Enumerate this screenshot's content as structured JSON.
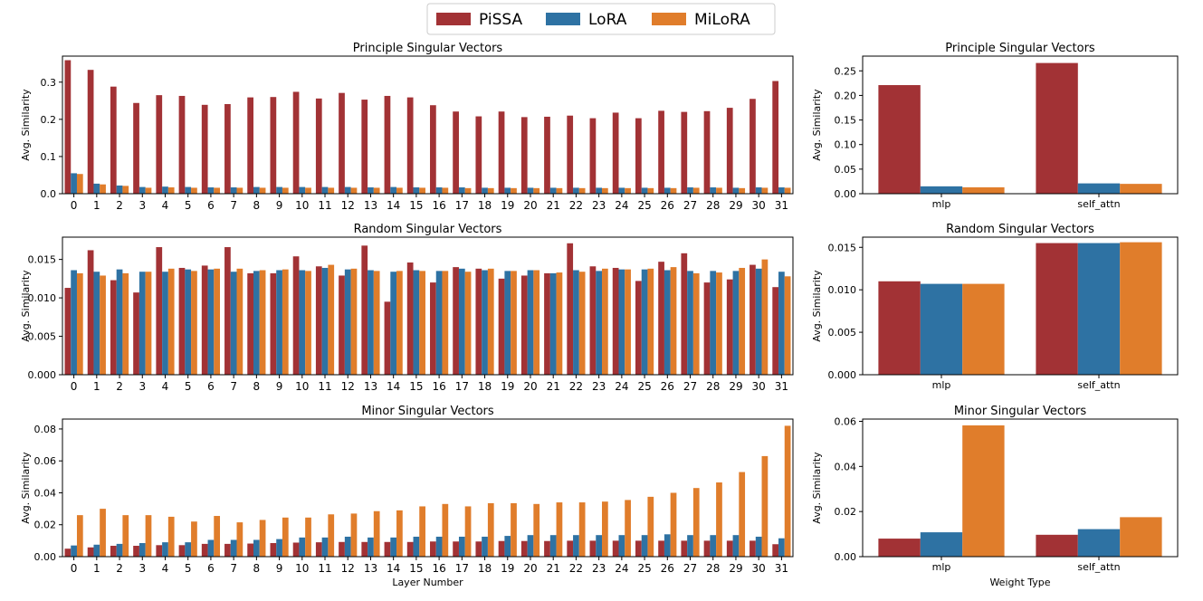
{
  "legend": [
    {
      "name": "PiSSA",
      "color": "#a23235"
    },
    {
      "name": "LoRA",
      "color": "#2e72a3"
    },
    {
      "name": "MiLoRA",
      "color": "#e07d2b"
    }
  ],
  "chart_data": [
    {
      "id": "layer-principle",
      "type": "bar",
      "title": "Principle Singular Vectors",
      "xlabel": "",
      "ylabel": "Avg. Similarity",
      "ylim": [
        0,
        0.37
      ],
      "yticks": [
        "0.0",
        "0.1",
        "0.2",
        "0.3"
      ],
      "ytick_values": [
        0,
        0.1,
        0.2,
        0.3
      ],
      "categories": [
        "0",
        "1",
        "2",
        "3",
        "4",
        "5",
        "6",
        "7",
        "8",
        "9",
        "10",
        "11",
        "12",
        "13",
        "14",
        "15",
        "16",
        "17",
        "18",
        "19",
        "20",
        "21",
        "22",
        "23",
        "24",
        "25",
        "26",
        "27",
        "28",
        "29",
        "30",
        "31"
      ],
      "series": [
        {
          "name": "PiSSA",
          "values": [
            0.359,
            0.333,
            0.288,
            0.244,
            0.265,
            0.263,
            0.239,
            0.241,
            0.259,
            0.26,
            0.274,
            0.256,
            0.271,
            0.253,
            0.263,
            0.259,
            0.238,
            0.221,
            0.208,
            0.221,
            0.206,
            0.207,
            0.21,
            0.203,
            0.218,
            0.203,
            0.223,
            0.22,
            0.222,
            0.231,
            0.255,
            0.303
          ]
        },
        {
          "name": "LoRA",
          "values": [
            0.055,
            0.027,
            0.022,
            0.018,
            0.019,
            0.018,
            0.017,
            0.017,
            0.018,
            0.018,
            0.018,
            0.018,
            0.018,
            0.017,
            0.018,
            0.017,
            0.017,
            0.017,
            0.016,
            0.016,
            0.016,
            0.016,
            0.016,
            0.016,
            0.016,
            0.016,
            0.016,
            0.017,
            0.017,
            0.016,
            0.017,
            0.017
          ]
        },
        {
          "name": "MiLoRA",
          "values": [
            0.053,
            0.025,
            0.021,
            0.016,
            0.017,
            0.016,
            0.016,
            0.016,
            0.016,
            0.016,
            0.016,
            0.016,
            0.016,
            0.016,
            0.016,
            0.016,
            0.016,
            0.015,
            0.015,
            0.015,
            0.015,
            0.015,
            0.015,
            0.015,
            0.015,
            0.015,
            0.015,
            0.016,
            0.016,
            0.015,
            0.016,
            0.016
          ]
        }
      ]
    },
    {
      "id": "type-principle",
      "type": "bar",
      "title": "Principle Singular Vectors",
      "xlabel": "",
      "ylabel": "Avg. Similarity",
      "ylim": [
        0,
        0.28
      ],
      "yticks": [
        "0.00",
        "0.05",
        "0.10",
        "0.15",
        "0.20",
        "0.25"
      ],
      "ytick_values": [
        0,
        0.05,
        0.1,
        0.15,
        0.2,
        0.25
      ],
      "categories": [
        "mlp",
        "self_attn"
      ],
      "series": [
        {
          "name": "PiSSA",
          "values": [
            0.221,
            0.266
          ]
        },
        {
          "name": "LoRA",
          "values": [
            0.015,
            0.021
          ]
        },
        {
          "name": "MiLoRA",
          "values": [
            0.013,
            0.02
          ]
        }
      ]
    },
    {
      "id": "layer-random",
      "type": "bar",
      "title": "Random Singular Vectors",
      "xlabel": "",
      "ylabel": "Avg. Similarity",
      "ylim": [
        0,
        0.0179
      ],
      "yticks": [
        "0.000",
        "0.005",
        "0.010",
        "0.015"
      ],
      "ytick_values": [
        0,
        0.005,
        0.01,
        0.015
      ],
      "categories": [
        "0",
        "1",
        "2",
        "3",
        "4",
        "5",
        "6",
        "7",
        "8",
        "9",
        "10",
        "11",
        "12",
        "13",
        "14",
        "15",
        "16",
        "17",
        "18",
        "19",
        "20",
        "21",
        "22",
        "23",
        "24",
        "25",
        "26",
        "27",
        "28",
        "29",
        "30",
        "31"
      ],
      "series": [
        {
          "name": "PiSSA",
          "values": [
            0.0113,
            0.0162,
            0.0123,
            0.0107,
            0.0166,
            0.0139,
            0.0142,
            0.0166,
            0.0132,
            0.0132,
            0.0154,
            0.0141,
            0.0129,
            0.0168,
            0.0095,
            0.0146,
            0.012,
            0.014,
            0.0138,
            0.0125,
            0.0129,
            0.0132,
            0.0171,
            0.0141,
            0.0139,
            0.0122,
            0.0147,
            0.0158,
            0.012,
            0.0124,
            0.0143,
            0.0114
          ]
        },
        {
          "name": "LoRA",
          "values": [
            0.0136,
            0.0134,
            0.0137,
            0.0134,
            0.0134,
            0.0137,
            0.0137,
            0.0134,
            0.0135,
            0.0136,
            0.0136,
            0.0139,
            0.0137,
            0.0136,
            0.0134,
            0.0136,
            0.0135,
            0.0138,
            0.0136,
            0.0135,
            0.0136,
            0.0132,
            0.0136,
            0.0135,
            0.0137,
            0.0137,
            0.0136,
            0.0135,
            0.0135,
            0.0135,
            0.0138,
            0.0134
          ]
        },
        {
          "name": "MiLoRA",
          "values": [
            0.0132,
            0.0129,
            0.0132,
            0.0134,
            0.0138,
            0.0135,
            0.0138,
            0.0138,
            0.0136,
            0.0137,
            0.0135,
            0.0143,
            0.0138,
            0.0135,
            0.0135,
            0.0135,
            0.0135,
            0.0134,
            0.0138,
            0.0135,
            0.0136,
            0.0133,
            0.0134,
            0.0138,
            0.0137,
            0.0138,
            0.014,
            0.0132,
            0.0133,
            0.0139,
            0.015,
            0.0128
          ]
        }
      ]
    },
    {
      "id": "type-random",
      "type": "bar",
      "title": "Random Singular Vectors",
      "xlabel": "",
      "ylabel": "Avg. Similarity",
      "ylim": [
        0,
        0.0162
      ],
      "yticks": [
        "0.000",
        "0.005",
        "0.010",
        "0.015"
      ],
      "ytick_values": [
        0,
        0.005,
        0.01,
        0.015
      ],
      "categories": [
        "mlp",
        "self_attn"
      ],
      "series": [
        {
          "name": "PiSSA",
          "values": [
            0.011,
            0.0155
          ]
        },
        {
          "name": "LoRA",
          "values": [
            0.0107,
            0.0155
          ]
        },
        {
          "name": "MiLoRA",
          "values": [
            0.0107,
            0.0156
          ]
        }
      ]
    },
    {
      "id": "layer-minor",
      "type": "bar",
      "title": "Minor Singular Vectors",
      "xlabel": "Layer Number",
      "ylabel": "Avg. Similarity",
      "ylim": [
        0,
        0.0862
      ],
      "yticks": [
        "0.00",
        "0.02",
        "0.04",
        "0.06",
        "0.08"
      ],
      "ytick_values": [
        0,
        0.02,
        0.04,
        0.06,
        0.08
      ],
      "categories": [
        "0",
        "1",
        "2",
        "3",
        "4",
        "5",
        "6",
        "7",
        "8",
        "9",
        "10",
        "11",
        "12",
        "13",
        "14",
        "15",
        "16",
        "17",
        "18",
        "19",
        "20",
        "21",
        "22",
        "23",
        "24",
        "25",
        "26",
        "27",
        "28",
        "29",
        "30",
        "31"
      ],
      "series": [
        {
          "name": "PiSSA",
          "values": [
            0.005,
            0.0058,
            0.0068,
            0.0068,
            0.0072,
            0.0072,
            0.008,
            0.008,
            0.0082,
            0.0085,
            0.0088,
            0.009,
            0.0092,
            0.0092,
            0.0092,
            0.0092,
            0.0095,
            0.0095,
            0.0095,
            0.0098,
            0.0098,
            0.0098,
            0.01,
            0.01,
            0.01,
            0.01,
            0.01,
            0.01,
            0.01,
            0.01,
            0.01,
            0.0078
          ]
        },
        {
          "name": "LoRA",
          "values": [
            0.007,
            0.0075,
            0.008,
            0.0085,
            0.009,
            0.009,
            0.0105,
            0.0105,
            0.0105,
            0.011,
            0.012,
            0.012,
            0.0125,
            0.012,
            0.012,
            0.0125,
            0.0125,
            0.0125,
            0.0125,
            0.013,
            0.0135,
            0.0135,
            0.0135,
            0.0135,
            0.0135,
            0.0135,
            0.014,
            0.0135,
            0.0135,
            0.0135,
            0.0125,
            0.0115
          ]
        },
        {
          "name": "MiLoRA",
          "values": [
            0.026,
            0.03,
            0.026,
            0.026,
            0.025,
            0.022,
            0.0255,
            0.0215,
            0.023,
            0.0245,
            0.0245,
            0.0265,
            0.027,
            0.0285,
            0.029,
            0.0315,
            0.033,
            0.0315,
            0.0335,
            0.0335,
            0.033,
            0.034,
            0.034,
            0.0345,
            0.0355,
            0.0375,
            0.04,
            0.043,
            0.0465,
            0.053,
            0.063,
            0.082
          ]
        }
      ]
    },
    {
      "id": "type-minor",
      "type": "bar",
      "title": "Minor Singular Vectors",
      "xlabel": "Weight Type",
      "ylabel": "Avg. Similarity",
      "ylim": [
        0,
        0.061
      ],
      "yticks": [
        "0.00",
        "0.02",
        "0.04",
        "0.06"
      ],
      "ytick_values": [
        0,
        0.02,
        0.04,
        0.06
      ],
      "categories": [
        "mlp",
        "self_attn"
      ],
      "series": [
        {
          "name": "PiSSA",
          "values": [
            0.008,
            0.0097
          ]
        },
        {
          "name": "LoRA",
          "values": [
            0.0108,
            0.0122
          ]
        },
        {
          "name": "MiLoRA",
          "values": [
            0.0582,
            0.0175
          ]
        }
      ]
    }
  ]
}
